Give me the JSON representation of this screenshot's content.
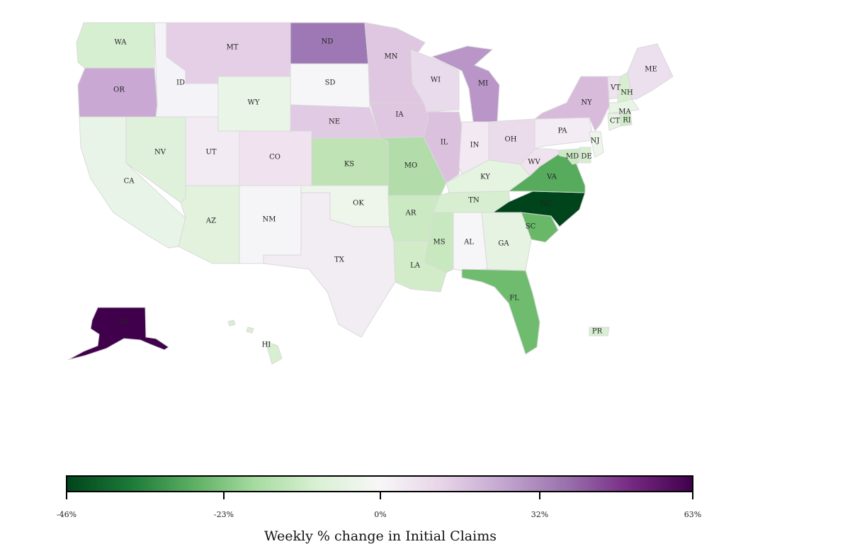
{
  "map": {
    "states": [
      {
        "code": "WA",
        "color": "#d6efd1"
      },
      {
        "code": "OR",
        "color": "#c9a8d4"
      },
      {
        "code": "CA",
        "color": "#e9f4e8"
      },
      {
        "code": "ID",
        "color": "#f4f3f7"
      },
      {
        "code": "NV",
        "color": "#dff1da"
      },
      {
        "code": "MT",
        "color": "#e4cfe6"
      },
      {
        "code": "WY",
        "color": "#e9f5e6"
      },
      {
        "code": "UT",
        "color": "#f3ebf3"
      },
      {
        "code": "AZ",
        "color": "#e2f2dd"
      },
      {
        "code": "CO",
        "color": "#f0e3ef"
      },
      {
        "code": "NM",
        "color": "#f5f4f7"
      },
      {
        "code": "ND",
        "color": "#9e78b4"
      },
      {
        "code": "SD",
        "color": "#f6f5f8"
      },
      {
        "code": "NE",
        "color": "#e1cae3"
      },
      {
        "code": "KS",
        "color": "#bfe3b5"
      },
      {
        "code": "OK",
        "color": "#eef6eb"
      },
      {
        "code": "TX",
        "color": "#f2ecf3"
      },
      {
        "code": "MN",
        "color": "#dfc6e1"
      },
      {
        "code": "IA",
        "color": "#dfc6e1"
      },
      {
        "code": "MO",
        "color": "#b2dcaa"
      },
      {
        "code": "AR",
        "color": "#cbe9c3"
      },
      {
        "code": "LA",
        "color": "#d2ecc9"
      },
      {
        "code": "WI",
        "color": "#eadbec"
      },
      {
        "code": "IL",
        "color": "#dcc1de"
      },
      {
        "code": "MI",
        "color": "#b995c8"
      },
      {
        "code": "IN",
        "color": "#f2e9f2"
      },
      {
        "code": "OH",
        "color": "#ebdcec"
      },
      {
        "code": "KY",
        "color": "#e5f3e1"
      },
      {
        "code": "TN",
        "color": "#d7eed0"
      },
      {
        "code": "MS",
        "color": "#c8e8c0"
      },
      {
        "code": "AL",
        "color": "#f6f6f8"
      },
      {
        "code": "GA",
        "color": "#e6f3e2"
      },
      {
        "code": "FL",
        "color": "#6fbc6f"
      },
      {
        "code": "SC",
        "color": "#68b868"
      },
      {
        "code": "NC",
        "color": "#00441b"
      },
      {
        "code": "VA",
        "color": "#56ab5c"
      },
      {
        "code": "WV",
        "color": "#f0e3ef"
      },
      {
        "code": "PA",
        "color": "#f3ecf4"
      },
      {
        "code": "NY",
        "color": "#d8badb"
      },
      {
        "code": "VT",
        "color": "#efe3ef"
      },
      {
        "code": "NH",
        "color": "#d7efd0"
      },
      {
        "code": "ME",
        "color": "#ecdfee"
      },
      {
        "code": "MA",
        "color": "#e8f5e5"
      },
      {
        "code": "RI",
        "color": "#cfeac7"
      },
      {
        "code": "CT",
        "color": "#e6f3e2"
      },
      {
        "code": "NJ",
        "color": "#eef6eb"
      },
      {
        "code": "DE",
        "color": "#d6eecf"
      },
      {
        "code": "MD",
        "color": "#cce9c4"
      },
      {
        "code": "AK",
        "color": "#40004b"
      },
      {
        "code": "HI",
        "color": "#d8efd1"
      },
      {
        "code": "PR",
        "color": "#d8efd1"
      }
    ]
  },
  "colorbar": {
    "title": "Weekly % change in Initial Claims",
    "ticks": [
      "-46%",
      "-23%",
      "0%",
      "32%",
      "63%"
    ],
    "colors": [
      "#00441b",
      "#1b7837",
      "#5aae61",
      "#a6dba0",
      "#d9f0d3",
      "#f7f7f7",
      "#e7d4e8",
      "#c2a5cf",
      "#9970ab",
      "#762a83",
      "#40004b"
    ]
  }
}
